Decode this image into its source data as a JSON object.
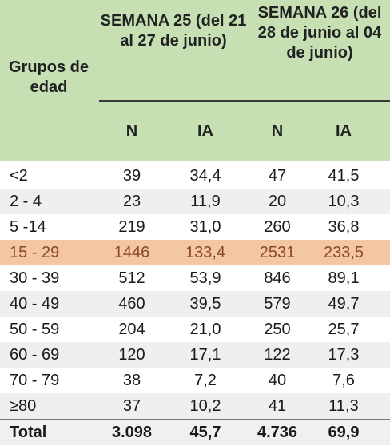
{
  "header": {
    "group_label": "Grupos de edad",
    "week25_label": "SEMANA 25 (del 21 al 27 de junio)",
    "week26_label": "SEMANA 26 (del 28 de junio al 04 de junio)",
    "col_n_25": "N",
    "col_ia_25": "IA",
    "col_n_26": "N",
    "col_ia_26": "IA"
  },
  "rows": [
    {
      "group": "<2",
      "n25": "39",
      "ia25": "34,4",
      "n26": "47",
      "ia26": "41,5"
    },
    {
      "group": "2 - 4",
      "n25": "23",
      "ia25": "11,9",
      "n26": "20",
      "ia26": "10,3"
    },
    {
      "group": "5 -14",
      "n25": "219",
      "ia25": "31,0",
      "n26": "260",
      "ia26": "36,8"
    },
    {
      "group": "15 - 29",
      "n25": "1446",
      "ia25": "133,4",
      "n26": "2531",
      "ia26": "233,5"
    },
    {
      "group": "30 - 39",
      "n25": "512",
      "ia25": "53,9",
      "n26": "846",
      "ia26": "89,1"
    },
    {
      "group": "40 - 49",
      "n25": "460",
      "ia25": "39,5",
      "n26": "579",
      "ia26": "49,7"
    },
    {
      "group": "50 - 59",
      "n25": "204",
      "ia25": "21,0",
      "n26": "250",
      "ia26": "25,7"
    },
    {
      "group": "60 - 69",
      "n25": "120",
      "ia25": "17,1",
      "n26": "122",
      "ia26": "17,3"
    },
    {
      "group": "70 - 79",
      "n25": "38",
      "ia25": "7,2",
      "n26": "40",
      "ia26": "7,6"
    },
    {
      "group": "≥80",
      "n25": "37",
      "ia25": "10,2",
      "n26": "41",
      "ia26": "11,3"
    }
  ],
  "total": {
    "group": "Total",
    "n25": "3.098",
    "ia25": "45,7",
    "n26": "4.736",
    "ia26": "69,9"
  },
  "colors": {
    "header_bg": "#c6e0b4",
    "highlight_bg": "#f5c6a4",
    "highlight_text": "#8a4a2a",
    "alt_row_bg": "#efefef"
  }
}
